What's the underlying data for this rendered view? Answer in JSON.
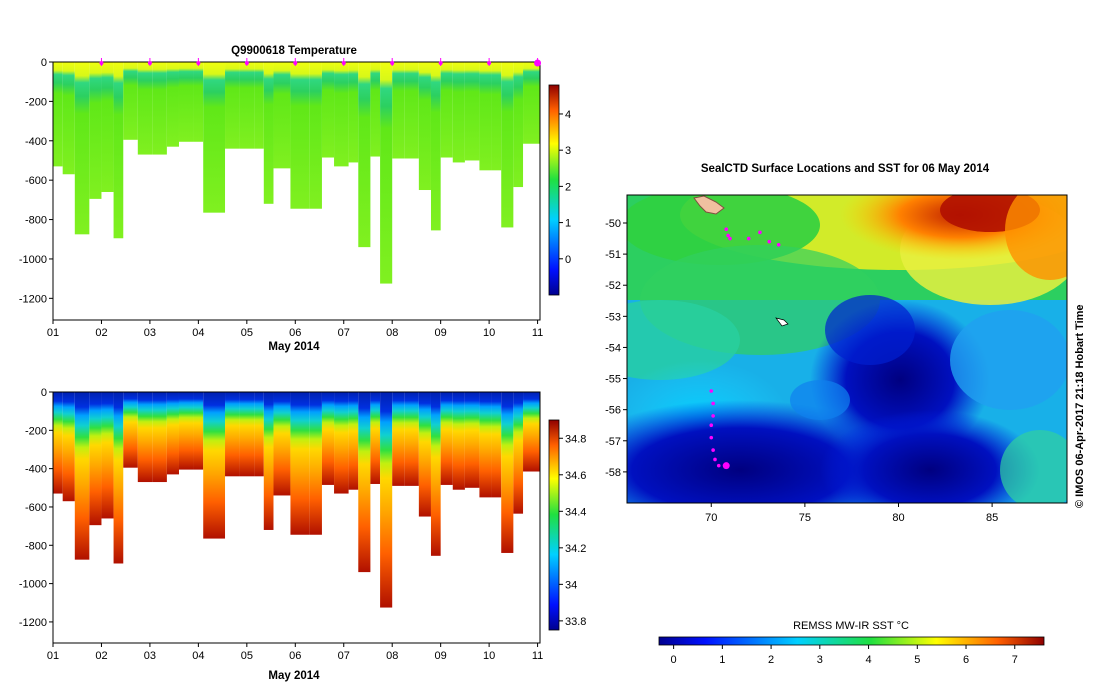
{
  "chart_data": [
    {
      "type": "heatmap",
      "title": "Q9900618  Temperature",
      "xlabel": "May 2014",
      "x_ticks": [
        "01",
        "02",
        "03",
        "04",
        "05",
        "06",
        "07",
        "08",
        "09",
        "10",
        "11"
      ],
      "xlim": [
        1,
        11.05
      ],
      "y_ticks": [
        0,
        -200,
        -400,
        -600,
        -800,
        -1000,
        -1200
      ],
      "ylim": [
        -1310,
        0
      ],
      "colorbar_ticks": [
        0,
        1,
        2,
        3,
        4
      ],
      "colorbar_range": [
        -1,
        4.8
      ],
      "surfacing_markers_x": [
        2,
        3,
        4,
        5,
        6,
        7,
        8,
        9,
        10,
        11
      ],
      "profiles": [
        {
          "x": 1.0,
          "w": 0.2,
          "depth": 530,
          "surface": 2.7,
          "deep": 1.9
        },
        {
          "x": 1.2,
          "w": 0.25,
          "depth": 570,
          "surface": 2.7,
          "deep": 1.9
        },
        {
          "x": 1.45,
          "w": 0.3,
          "depth": 875,
          "surface": 2.7,
          "deep": 1.9
        },
        {
          "x": 1.75,
          "w": 0.25,
          "depth": 695,
          "surface": 2.8,
          "deep": 1.9
        },
        {
          "x": 2.0,
          "w": 0.25,
          "depth": 660,
          "surface": 2.8,
          "deep": 1.9
        },
        {
          "x": 2.25,
          "w": 0.2,
          "depth": 895,
          "surface": 2.8,
          "deep": 1.9
        },
        {
          "x": 2.45,
          "w": 0.3,
          "depth": 395,
          "surface": 2.8,
          "deep": 1.9
        },
        {
          "x": 2.75,
          "w": 0.3,
          "depth": 470,
          "surface": 2.9,
          "deep": 1.9
        },
        {
          "x": 3.05,
          "w": 0.3,
          "depth": 470,
          "surface": 2.9,
          "deep": 1.9
        },
        {
          "x": 3.35,
          "w": 0.25,
          "depth": 430,
          "surface": 2.8,
          "deep": 1.9
        },
        {
          "x": 3.6,
          "w": 0.3,
          "depth": 405,
          "surface": 2.8,
          "deep": 1.9
        },
        {
          "x": 3.9,
          "w": 0.2,
          "depth": 405,
          "surface": 2.8,
          "deep": 1.9
        },
        {
          "x": 4.1,
          "w": 0.45,
          "depth": 765,
          "surface": 2.7,
          "deep": 1.9
        },
        {
          "x": 4.55,
          "w": 0.3,
          "depth": 440,
          "surface": 2.7,
          "deep": 1.9
        },
        {
          "x": 4.85,
          "w": 0.3,
          "depth": 440,
          "surface": 2.6,
          "deep": 1.9
        },
        {
          "x": 5.15,
          "w": 0.2,
          "depth": 440,
          "surface": 2.3,
          "deep": 1.9
        },
        {
          "x": 5.35,
          "w": 0.2,
          "depth": 720,
          "surface": 2.2,
          "deep": 1.9
        },
        {
          "x": 5.55,
          "w": 0.35,
          "depth": 540,
          "surface": 2.1,
          "deep": 1.9
        },
        {
          "x": 5.9,
          "w": 0.4,
          "depth": 745,
          "surface": 2.1,
          "deep": 1.9
        },
        {
          "x": 6.3,
          "w": 0.25,
          "depth": 745,
          "surface": 2.1,
          "deep": 1.9
        },
        {
          "x": 6.55,
          "w": 0.25,
          "depth": 485,
          "surface": 2.1,
          "deep": 1.9
        },
        {
          "x": 6.8,
          "w": 0.3,
          "depth": 530,
          "surface": 2.1,
          "deep": 1.9
        },
        {
          "x": 7.1,
          "w": 0.2,
          "depth": 510,
          "surface": 2.1,
          "deep": 1.9
        },
        {
          "x": 7.3,
          "w": 0.25,
          "depth": 940,
          "surface": 2.1,
          "deep": 1.9
        },
        {
          "x": 7.55,
          "w": 0.2,
          "depth": 480,
          "surface": 2.1,
          "deep": 1.9
        },
        {
          "x": 7.75,
          "w": 0.25,
          "depth": 1125,
          "surface": 2.1,
          "deep": 1.9
        },
        {
          "x": 8.0,
          "w": 0.25,
          "depth": 490,
          "surface": 2.1,
          "deep": 1.9
        },
        {
          "x": 8.25,
          "w": 0.3,
          "depth": 490,
          "surface": 2.1,
          "deep": 1.9
        },
        {
          "x": 8.55,
          "w": 0.25,
          "depth": 650,
          "surface": 2.1,
          "deep": 1.9
        },
        {
          "x": 8.8,
          "w": 0.2,
          "depth": 855,
          "surface": 2.0,
          "deep": 1.9
        },
        {
          "x": 9.0,
          "w": 0.25,
          "depth": 485,
          "surface": 2.0,
          "deep": 1.9
        },
        {
          "x": 9.25,
          "w": 0.25,
          "depth": 510,
          "surface": 2.0,
          "deep": 1.9
        },
        {
          "x": 9.5,
          "w": 0.3,
          "depth": 500,
          "surface": 1.9,
          "deep": 1.9
        },
        {
          "x": 9.8,
          "w": 0.25,
          "depth": 550,
          "surface": 1.7,
          "deep": 1.9
        },
        {
          "x": 10.05,
          "w": 0.2,
          "depth": 550,
          "surface": 1.7,
          "deep": 1.9
        },
        {
          "x": 10.25,
          "w": 0.25,
          "depth": 840,
          "surface": 1.6,
          "deep": 1.9
        },
        {
          "x": 10.5,
          "w": 0.2,
          "depth": 635,
          "surface": 1.5,
          "deep": 1.9
        },
        {
          "x": 10.7,
          "w": 0.35,
          "depth": 415,
          "surface": 1.2,
          "deep": 1.9
        }
      ]
    },
    {
      "type": "heatmap",
      "title": "",
      "xlabel": "May 2014",
      "x_ticks": [
        "01",
        "02",
        "03",
        "04",
        "05",
        "06",
        "07",
        "08",
        "09",
        "10",
        "11"
      ],
      "xlim": [
        1,
        11.05
      ],
      "y_ticks": [
        0,
        -200,
        -400,
        -600,
        -800,
        -1000,
        -1200
      ],
      "ylim": [
        -1310,
        0
      ],
      "colorbar_ticks": [
        33.8,
        34,
        34.2,
        34.4,
        34.6,
        34.8
      ],
      "colorbar_range": [
        33.75,
        34.9
      ],
      "colorbar_tick_labels": [
        "33.8",
        "34",
        "34.2",
        "34.4",
        "34.6",
        "34.8"
      ]
    },
    {
      "type": "heatmap",
      "title": "SealCTD Surface Locations and SST for 06 May 2014",
      "x_ticks": [
        70,
        75,
        80,
        85
      ],
      "xlim": [
        65.5,
        89
      ],
      "y_ticks": [
        -50,
        -51,
        -52,
        -53,
        -54,
        -55,
        -56,
        -57,
        -58
      ],
      "ylim": [
        -59,
        -49.1
      ],
      "colorbar_label": "REMSS MW-IR SST °C",
      "colorbar_ticks": [
        0,
        1,
        2,
        3,
        4,
        5,
        6,
        7
      ],
      "colorbar_range": [
        -0.3,
        7.6
      ],
      "credit": "© IMOS 06-Apr-2017 21:18 Hobart Time",
      "track": [
        [
          70.0,
          -55.4
        ],
        [
          70.1,
          -55.8
        ],
        [
          70.1,
          -56.2
        ],
        [
          70.0,
          -56.5
        ],
        [
          70.0,
          -56.9
        ],
        [
          70.1,
          -57.3
        ],
        [
          70.2,
          -57.6
        ],
        [
          70.4,
          -57.8
        ],
        [
          70.8,
          -57.8
        ]
      ],
      "track_north": [
        [
          70.8,
          -50.2
        ],
        [
          70.9,
          -50.4
        ],
        [
          71.0,
          -50.5
        ],
        [
          72.0,
          -50.5
        ],
        [
          72.6,
          -50.3
        ],
        [
          73.1,
          -50.6
        ],
        [
          73.6,
          -50.7
        ]
      ],
      "current_position": [
        70.8,
        -57.8
      ]
    }
  ]
}
